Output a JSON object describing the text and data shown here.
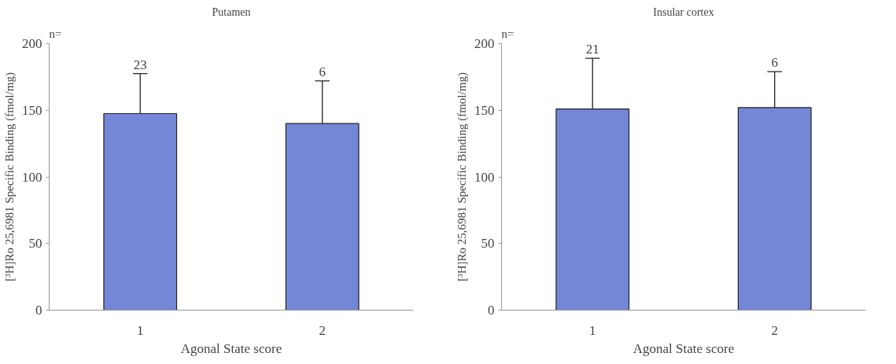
{
  "chart_data": [
    {
      "type": "bar",
      "title": "Putamen",
      "xlabel": "Agonal State score",
      "ylabel": "[³H]Ro 25,6981 Specific Binding (fmol/mg)",
      "categories": [
        "1",
        "2"
      ],
      "values": [
        147.5,
        140
      ],
      "errors": [
        30,
        32
      ],
      "color": "#7486d6",
      "ylim": [
        0,
        200
      ],
      "yticks": [
        0,
        50,
        100,
        150,
        200
      ],
      "grid": false,
      "annotations": [
        "n=",
        "23",
        "6"
      ]
    },
    {
      "type": "bar",
      "title": "Insular cortex",
      "xlabel": "Agonal State score",
      "ylabel": "[³H]Ro 25,6981 Specific Binding (fmol/mg)",
      "categories": [
        "1",
        "2"
      ],
      "values": [
        151,
        152
      ],
      "errors": [
        38,
        27
      ],
      "color": "#7486d6",
      "ylim": [
        0,
        200
      ],
      "yticks": [
        0,
        50,
        100,
        150,
        200
      ],
      "grid": false,
      "annotations": [
        "n=",
        "21",
        "6"
      ]
    }
  ]
}
